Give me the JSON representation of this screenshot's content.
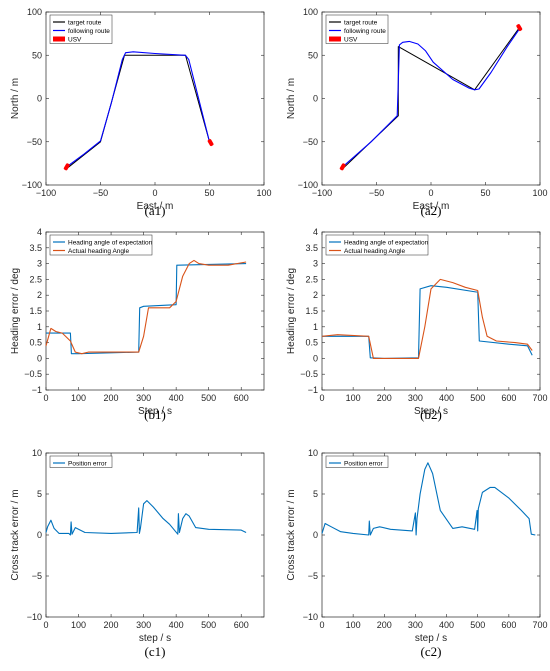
{
  "chart_data": [
    {
      "type": "line",
      "caption": "(a1)",
      "xlabel": "East / m",
      "ylabel": "North / m",
      "xlim": [
        -100,
        100
      ],
      "ylim": [
        -100,
        100
      ],
      "xticks": [
        -100,
        -50,
        0,
        50,
        100
      ],
      "yticks": [
        -100,
        -50,
        0,
        50,
        100
      ],
      "grid": false,
      "legend_position": "top-left",
      "series": [
        {
          "name": "target route",
          "color": "#000000",
          "x": [
            -80,
            -50,
            -28,
            28,
            50
          ],
          "y": [
            -80,
            -50,
            50,
            50,
            -50
          ]
        },
        {
          "name": "following route",
          "color": "#0000ff",
          "x": [
            -81,
            -65,
            -50,
            -40,
            -30,
            -27,
            -20,
            0,
            28,
            31,
            40,
            50
          ],
          "y": [
            -79,
            -64,
            -49,
            -5,
            45,
            53,
            54,
            52,
            50,
            45,
            0,
            -50
          ]
        },
        {
          "name": "USV",
          "color": "#ff0000",
          "x": [
            -81,
            51
          ],
          "y": [
            -79,
            -51
          ]
        }
      ]
    },
    {
      "type": "line",
      "caption": "(a2)",
      "xlabel": "East / m",
      "ylabel": "North / m",
      "xlim": [
        -100,
        100
      ],
      "ylim": [
        -100,
        100
      ],
      "xticks": [
        -100,
        -50,
        0,
        50,
        100
      ],
      "yticks": [
        -100,
        -50,
        0,
        50,
        100
      ],
      "grid": false,
      "legend_position": "top-left",
      "series": [
        {
          "name": "target route",
          "color": "#000000",
          "x": [
            -80,
            -30,
            -30,
            40,
            80
          ],
          "y": [
            -80,
            -20,
            60,
            10,
            80
          ]
        },
        {
          "name": "following route",
          "color": "#0000ff",
          "x": [
            -81,
            -55,
            -31,
            -30,
            -29,
            -26,
            -20,
            -12,
            -5,
            2,
            20,
            35,
            40,
            44,
            55,
            70,
            82
          ],
          "y": [
            -79,
            -50,
            -20,
            20,
            62,
            65,
            66,
            63,
            55,
            42,
            22,
            12,
            10,
            11,
            30,
            60,
            82
          ]
        },
        {
          "name": "USV",
          "color": "#ff0000",
          "x": [
            -81,
            81
          ],
          "y": [
            -79,
            82
          ]
        }
      ]
    },
    {
      "type": "line",
      "caption": "(b1)",
      "xlabel": "Step / s",
      "ylabel": "Heading error / deg",
      "xlim": [
        0,
        670
      ],
      "ylim": [
        -1,
        4
      ],
      "xticks": [
        0,
        100,
        200,
        300,
        400,
        500,
        600
      ],
      "yticks": [
        -1,
        -0.5,
        0,
        0.5,
        1,
        1.5,
        2,
        2.5,
        3,
        3.5,
        4
      ],
      "grid": false,
      "legend_position": "top-left",
      "series": [
        {
          "name": "Heading angle of expectation",
          "color": "#0072bd",
          "x": [
            0,
            75,
            78,
            100,
            285,
            288,
            300,
            400,
            402,
            405,
            615
          ],
          "y": [
            0.8,
            0.8,
            0.15,
            0.15,
            0.2,
            1.6,
            1.65,
            1.7,
            2.95,
            2.95,
            3.0
          ]
        },
        {
          "name": "Actual heading Angle",
          "color": "#d95319",
          "x": [
            0,
            15,
            30,
            50,
            75,
            90,
            110,
            130,
            285,
            300,
            315,
            340,
            380,
            400,
            420,
            440,
            455,
            470,
            500,
            560,
            615
          ],
          "y": [
            0.4,
            0.95,
            0.85,
            0.8,
            0.55,
            0.2,
            0.15,
            0.2,
            0.2,
            0.7,
            1.6,
            1.6,
            1.6,
            1.8,
            2.6,
            3.0,
            3.1,
            3.0,
            2.95,
            2.95,
            3.05
          ]
        }
      ]
    },
    {
      "type": "line",
      "caption": "(b2)",
      "xlabel": "Step / s",
      "ylabel": "Heading error / deg",
      "xlim": [
        0,
        700
      ],
      "ylim": [
        -1,
        4
      ],
      "xticks": [
        0,
        100,
        200,
        300,
        400,
        500,
        600,
        700
      ],
      "yticks": [
        -1,
        -0.5,
        0,
        0.5,
        1,
        1.5,
        2,
        2.5,
        3,
        3.5,
        4
      ],
      "grid": false,
      "legend_position": "top-left",
      "series": [
        {
          "name": "Heading angle of expectation",
          "color": "#0072bd",
          "x": [
            0,
            150,
            155,
            200,
            310,
            315,
            350,
            400,
            495,
            500,
            505,
            600,
            660,
            675
          ],
          "y": [
            0.7,
            0.7,
            0.02,
            0.0,
            0.02,
            2.2,
            2.3,
            2.25,
            2.1,
            2.1,
            0.55,
            0.45,
            0.4,
            0.1
          ]
        },
        {
          "name": "Actual heading Angle",
          "color": "#d95319",
          "x": [
            0,
            50,
            150,
            165,
            310,
            330,
            350,
            380,
            420,
            460,
            500,
            515,
            530,
            560,
            620,
            660,
            675
          ],
          "y": [
            0.7,
            0.75,
            0.7,
            0.0,
            0.0,
            1.0,
            2.2,
            2.5,
            2.4,
            2.25,
            2.15,
            1.3,
            0.7,
            0.55,
            0.5,
            0.45,
            0.25
          ]
        }
      ]
    },
    {
      "type": "line",
      "caption": "(c1)",
      "xlabel": "step / s",
      "ylabel": "Cross track error / m",
      "xlim": [
        0,
        670
      ],
      "ylim": [
        -10,
        10
      ],
      "xticks": [
        0,
        100,
        200,
        300,
        400,
        500,
        600
      ],
      "yticks": [
        -10,
        -5,
        0,
        5,
        10
      ],
      "grid": false,
      "legend_position": "top-left",
      "series": [
        {
          "name": "Position error",
          "color": "#0072bd",
          "x": [
            0,
            5,
            15,
            25,
            40,
            70,
            75,
            77,
            80,
            90,
            120,
            200,
            280,
            285,
            287,
            290,
            300,
            310,
            330,
            360,
            380,
            405,
            407,
            410,
            420,
            430,
            440,
            460,
            500,
            600,
            615
          ],
          "y": [
            0.3,
            1.0,
            1.8,
            0.8,
            0.2,
            0.2,
            0.0,
            1.6,
            0.1,
            0.9,
            0.3,
            0.2,
            0.3,
            3.3,
            0.2,
            0.8,
            3.8,
            4.2,
            3.4,
            2.0,
            1.3,
            0.1,
            2.6,
            0.3,
            2.0,
            2.6,
            2.3,
            0.9,
            0.7,
            0.6,
            0.3
          ]
        }
      ]
    },
    {
      "type": "line",
      "caption": "(c2)",
      "xlabel": "step / s",
      "ylabel": "Cross track error / m",
      "xlim": [
        0,
        700
      ],
      "ylim": [
        -10,
        10
      ],
      "xticks": [
        0,
        100,
        200,
        300,
        400,
        500,
        600,
        700
      ],
      "yticks": [
        -10,
        -5,
        0,
        5,
        10
      ],
      "grid": false,
      "legend_position": "top-left",
      "series": [
        {
          "name": "Position error",
          "color": "#0072bd",
          "x": [
            0,
            10,
            30,
            60,
            100,
            150,
            152,
            155,
            165,
            185,
            220,
            290,
            300,
            302,
            305,
            315,
            330,
            340,
            355,
            380,
            420,
            450,
            490,
            498,
            500,
            502,
            515,
            540,
            555,
            600,
            640,
            665,
            672,
            685
          ],
          "y": [
            0.2,
            1.4,
            1.0,
            0.4,
            0.2,
            0.0,
            1.7,
            0.0,
            0.8,
            1.0,
            0.7,
            0.5,
            2.7,
            0.0,
            2.0,
            5.0,
            8.0,
            8.8,
            7.5,
            3.0,
            0.8,
            1.0,
            0.7,
            3.0,
            0.5,
            3.2,
            5.2,
            5.8,
            5.8,
            4.5,
            3.0,
            2.0,
            0.1,
            0.0
          ]
        }
      ]
    }
  ]
}
